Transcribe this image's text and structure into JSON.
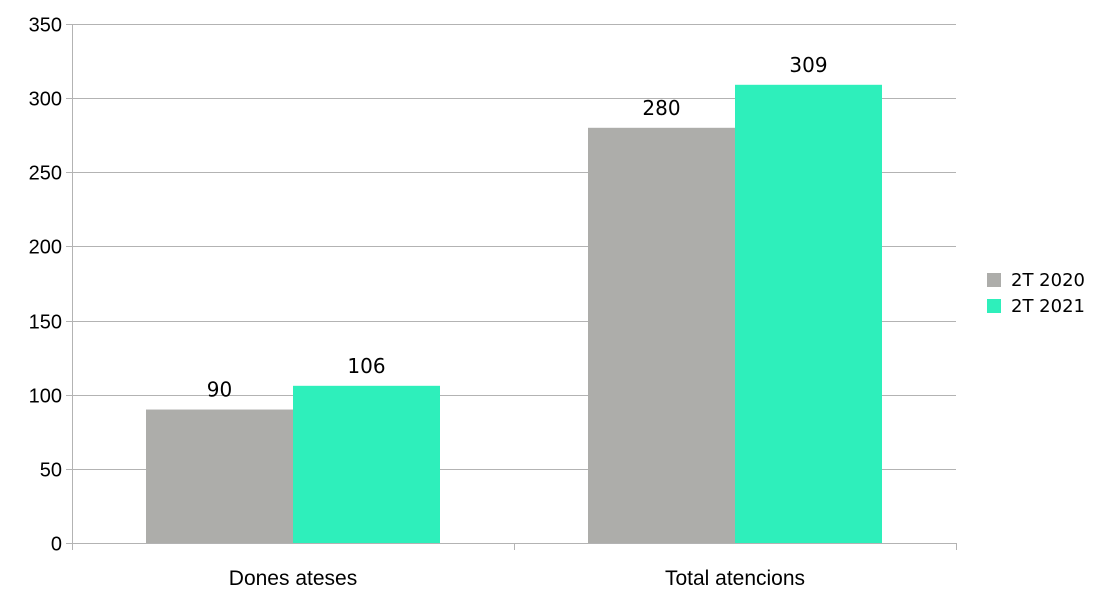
{
  "chart_data": {
    "type": "bar",
    "categories": [
      "Dones ateses",
      "Total atencions"
    ],
    "series": [
      {
        "name": "2T 2020",
        "values": [
          90,
          280
        ],
        "color": "#adadaa"
      },
      {
        "name": "2T 2021",
        "values": [
          106,
          309
        ],
        "color": "#2eefbb"
      }
    ],
    "ylim": [
      0,
      350
    ],
    "yticks": [
      0,
      50,
      100,
      150,
      200,
      250,
      300,
      350
    ],
    "grid": true,
    "legend_position": "right",
    "data_labels": true
  }
}
